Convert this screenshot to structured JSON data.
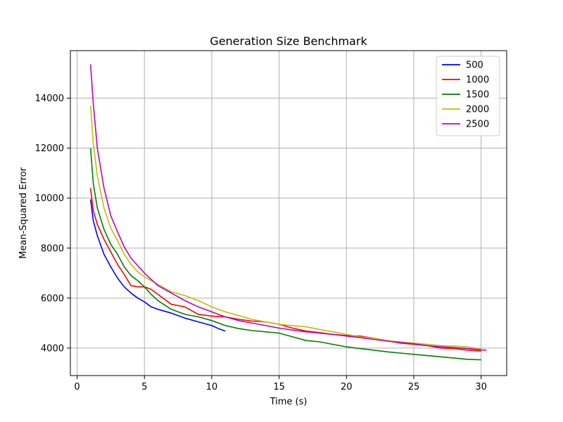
{
  "chart_data": {
    "type": "line",
    "title": "Generation Size Benchmark",
    "xlabel": "Time (s)",
    "ylabel": "Mean-Squared Error",
    "xlim": [
      -0.5,
      31.9
    ],
    "ylim": [
      2900,
      15900
    ],
    "xticks": [
      0,
      5,
      10,
      15,
      20,
      25,
      30
    ],
    "yticks": [
      4000,
      6000,
      8000,
      10000,
      12000,
      14000
    ],
    "grid": true,
    "legend": "top-right",
    "series": [
      {
        "name": "500",
        "color": "#0000ff",
        "x": [
          1.0,
          1.2,
          1.5,
          2.0,
          2.5,
          3.0,
          3.5,
          4.0,
          4.5,
          5.0,
          5.5,
          6.0,
          7.0,
          8.0,
          9.0,
          10.0,
          10.5,
          11.0
        ],
        "y": [
          9950,
          9100,
          8500,
          7750,
          7250,
          6800,
          6450,
          6200,
          6000,
          5850,
          5650,
          5550,
          5400,
          5200,
          5050,
          4900,
          4780,
          4680
        ]
      },
      {
        "name": "1000",
        "color": "#ff0000",
        "x": [
          1.0,
          1.2,
          1.5,
          2.0,
          2.5,
          3.0,
          3.5,
          4.0,
          4.5,
          5.0,
          5.5,
          6.0,
          7.0,
          8.0,
          9.0,
          10.0,
          11.0,
          12.0,
          13.0,
          14.0,
          15.0,
          16.0,
          17.0,
          18.0,
          19.0,
          20.0,
          21.0,
          22.0,
          23.0,
          24.0,
          25.0,
          26.0,
          27.0,
          28.0,
          29.0,
          30.0
        ],
        "y": [
          10400,
          9500,
          8950,
          8350,
          7850,
          7350,
          6950,
          6500,
          6450,
          6450,
          6350,
          6150,
          5750,
          5650,
          5350,
          5280,
          5250,
          5150,
          5080,
          5050,
          4950,
          4800,
          4680,
          4620,
          4550,
          4500,
          4480,
          4400,
          4300,
          4200,
          4150,
          4100,
          4000,
          3980,
          3920,
          3880
        ]
      },
      {
        "name": "1500",
        "color": "#008000",
        "x": [
          1.0,
          1.2,
          1.5,
          2.0,
          2.5,
          3.0,
          3.5,
          4.0,
          4.5,
          5.0,
          5.5,
          6.0,
          7.0,
          8.0,
          9.0,
          10.0,
          11.0,
          12.0,
          13.0,
          14.0,
          15.0,
          16.0,
          17.0,
          18.0,
          19.0,
          20.0,
          21.0,
          22.0,
          23.0,
          24.0,
          25.0,
          26.0,
          27.0,
          28.0,
          29.0,
          30.0
        ],
        "y": [
          12000,
          10600,
          9600,
          8750,
          8150,
          7750,
          7250,
          6900,
          6700,
          6450,
          6150,
          5900,
          5550,
          5350,
          5250,
          5100,
          4900,
          4780,
          4700,
          4650,
          4600,
          4450,
          4300,
          4250,
          4150,
          4050,
          3980,
          3920,
          3850,
          3800,
          3750,
          3700,
          3650,
          3600,
          3550,
          3530
        ]
      },
      {
        "name": "2000",
        "color": "#bfbf00",
        "x": [
          1.0,
          1.2,
          1.5,
          2.0,
          2.5,
          3.0,
          3.5,
          4.0,
          4.5,
          5.0,
          5.5,
          6.0,
          7.0,
          8.0,
          9.0,
          10.0,
          11.0,
          12.0,
          13.0,
          14.0,
          15.0,
          16.0,
          17.0,
          18.0,
          19.0,
          20.0,
          21.0,
          22.0,
          23.0,
          24.0,
          25.0,
          26.0,
          27.0,
          28.0,
          29.0,
          30.0
        ],
        "y": [
          13700,
          12200,
          10900,
          9600,
          8800,
          8300,
          7750,
          7350,
          7050,
          6850,
          6700,
          6550,
          6250,
          6100,
          5900,
          5650,
          5450,
          5300,
          5150,
          5050,
          4950,
          4900,
          4850,
          4750,
          4650,
          4550,
          4450,
          4400,
          4300,
          4250,
          4200,
          4150,
          4100,
          4080,
          4050,
          3950
        ]
      },
      {
        "name": "2500",
        "color": "#bf00bf",
        "x": [
          1.0,
          1.2,
          1.5,
          2.0,
          2.5,
          3.0,
          3.5,
          4.0,
          4.5,
          5.0,
          5.5,
          6.0,
          7.0,
          8.0,
          9.0,
          10.0,
          11.0,
          12.0,
          13.0,
          14.0,
          15.0,
          16.0,
          17.0,
          18.0,
          19.0,
          20.0,
          21.0,
          22.0,
          23.0,
          24.0,
          25.0,
          26.0,
          27.0,
          28.0,
          29.0,
          30.0,
          30.4
        ],
        "y": [
          15350,
          13800,
          12000,
          10400,
          9300,
          8650,
          8050,
          7600,
          7300,
          7000,
          6750,
          6500,
          6200,
          5900,
          5650,
          5450,
          5250,
          5100,
          5000,
          4900,
          4800,
          4720,
          4650,
          4600,
          4550,
          4480,
          4420,
          4350,
          4280,
          4220,
          4170,
          4100,
          4050,
          4020,
          3980,
          3930,
          3920
        ]
      }
    ]
  }
}
